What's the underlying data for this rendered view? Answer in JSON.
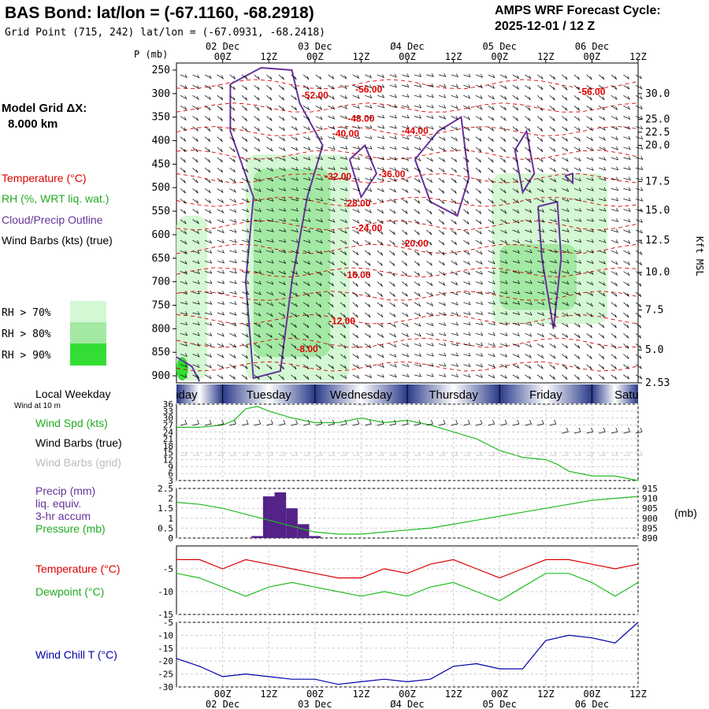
{
  "header": {
    "title": "BAS Bond:  lat/lon = (-67.1160, -68.2918)",
    "grid_point": "Grid Point (715, 242) lat/lon = (-67.0931, -68.2418)",
    "cycle_line1": "AMPS WRF Forecast Cycle:",
    "cycle_line2": "2025-12-01 / 12  Z"
  },
  "left_panel": {
    "model_grid_label": "Model Grid ΔX:",
    "model_grid_value": "8.000 km",
    "legend_temperature": "Temperature (°C)",
    "legend_rh": "RH (%, WRT liq. wat.)",
    "legend_cloud": "Cloud/Precip Outline",
    "legend_wind": "Wind Barbs (kts) (true)",
    "rh_70": "RH > 70%",
    "rh_80": "RH > 80%",
    "rh_90": "RH > 90%",
    "local_weekday": "Local Weekday",
    "wind_10m": "Wind at 10 m",
    "wind_spd": "Wind Spd (kts)",
    "wind_barbs_true": "Wind Barbs (true)",
    "wind_barbs_grid": "Wind Barbs (grid)",
    "precip_line1": "Precip (mm)",
    "precip_line2": "liq. equiv.",
    "precip_line3": "3-hr accum",
    "pressure": "Pressure (mb)",
    "temperature": "Temperature (°C)",
    "dewpoint": "Dewpoint (°C)",
    "windchill": "Wind Chill T (°C)"
  },
  "colors": {
    "temperature": "#dd0000",
    "rh_70": "#d4f7d4",
    "rh_80": "#a3e8a3",
    "rh_90": "#33dd33",
    "cloud": "#663399",
    "wind_spd": "#22bb22",
    "pressure": "#22bb22",
    "dewpoint": "#22bb22",
    "precip": "#552288",
    "windchill": "#0000aa",
    "barbs_grid": "#bbbbbb"
  },
  "chart_data": [
    {
      "type": "line",
      "name": "cross-section",
      "p_axis_label": "P (mb)",
      "height_axis_label": "Kft MSL",
      "x_date_labels": [
        "02 Dec",
        "03 Dec",
        "Ø4 Dec",
        "05 Dec",
        "06 Dec"
      ],
      "x_hour_labels": [
        "00Z",
        "12Z",
        "00Z",
        "12Z",
        "00Z",
        "12Z",
        "00Z",
        "12Z",
        "00Z",
        "12Z"
      ],
      "x_hours": [
        12,
        24,
        36,
        48,
        60,
        72,
        84,
        96,
        108,
        120
      ],
      "x_range": [
        0,
        120
      ],
      "pressure_ticks": [
        250,
        300,
        350,
        400,
        450,
        500,
        550,
        600,
        650,
        700,
        750,
        800,
        850,
        900
      ],
      "height_ticks": [
        {
          "p": 300,
          "label": "30.0"
        },
        {
          "p": 355,
          "label": "25.0"
        },
        {
          "p": 382,
          "label": "22.5"
        },
        {
          "p": 410,
          "label": "20.0"
        },
        {
          "p": 487,
          "label": "17.5"
        },
        {
          "p": 548,
          "label": "15.0"
        },
        {
          "p": 612,
          "label": "12.5"
        },
        {
          "p": 680,
          "label": "10.0"
        },
        {
          "p": 760,
          "label": "7.5"
        },
        {
          "p": 845,
          "label": "5.0"
        },
        {
          "p": 920,
          "label": "2.53"
        }
      ],
      "temperature_labels": [
        {
          "t": 36,
          "p": 310,
          "label": "-52.00"
        },
        {
          "t": 50,
          "p": 298,
          "label": "-56.00"
        },
        {
          "t": 108,
          "p": 303,
          "label": "-56.00"
        },
        {
          "t": 48,
          "p": 360,
          "label": "-48.00"
        },
        {
          "t": 62,
          "p": 386,
          "label": "-44.00"
        },
        {
          "t": 44,
          "p": 392,
          "label": "-40.00"
        },
        {
          "t": 56,
          "p": 478,
          "label": "-36.00"
        },
        {
          "t": 42,
          "p": 483,
          "label": "-32.00"
        },
        {
          "t": 47,
          "p": 540,
          "label": "-28.00"
        },
        {
          "t": 50,
          "p": 593,
          "label": "-24.00"
        },
        {
          "t": 62,
          "p": 625,
          "label": "-20.00"
        },
        {
          "t": 47,
          "p": 692,
          "label": "-16.00"
        },
        {
          "t": 43,
          "p": 790,
          "label": "-12.00"
        },
        {
          "t": 34,
          "p": 850,
          "label": "-8.00"
        }
      ],
      "rh_regions": [
        {
          "level": "70",
          "t_range": [
            0,
            8
          ],
          "p_range": [
            560,
            910
          ]
        },
        {
          "level": "70",
          "t_range": [
            18,
            45
          ],
          "p_range": [
            430,
            910
          ]
        },
        {
          "level": "70",
          "t_range": [
            82,
            112
          ],
          "p_range": [
            470,
            790
          ]
        },
        {
          "level": "80",
          "t_range": [
            20,
            40
          ],
          "p_range": [
            460,
            860
          ]
        },
        {
          "level": "80",
          "t_range": [
            84,
            104
          ],
          "p_range": [
            620,
            760
          ]
        },
        {
          "level": "90",
          "t_range": [
            0,
            3
          ],
          "p_range": [
            860,
            910
          ]
        }
      ]
    },
    {
      "type": "line",
      "name": "wind",
      "yticks": [
        3,
        6,
        9,
        12,
        15,
        18,
        21,
        24,
        27,
        30,
        33,
        36
      ],
      "ylim": [
        3,
        36
      ],
      "hours": [
        0,
        6,
        12,
        15,
        18,
        21,
        24,
        30,
        36,
        42,
        48,
        54,
        60,
        66,
        72,
        78,
        84,
        90,
        96,
        99,
        102,
        108,
        114,
        120
      ],
      "series": [
        {
          "values": [
            26,
            26,
            27,
            29,
            34,
            35,
            33,
            30,
            28,
            28,
            30,
            28,
            29,
            27,
            24,
            21,
            16,
            13,
            12,
            10,
            7,
            5,
            5,
            3
          ]
        }
      ]
    },
    {
      "type": "bar",
      "name": "precip-pressure",
      "precip_yticks": [
        0.0,
        0.5,
        1.0,
        1.5,
        2.0,
        2.5
      ],
      "precip_ylim": [
        0,
        2.5
      ],
      "pressure_yticks": [
        890,
        895,
        900,
        905,
        910,
        915
      ],
      "pressure_ylim": [
        890,
        915
      ],
      "precip": [
        {
          "hour": 21,
          "value": 0.1
        },
        {
          "hour": 24,
          "value": 2.1
        },
        {
          "hour": 27,
          "value": 2.3
        },
        {
          "hour": 30,
          "value": 1.5
        },
        {
          "hour": 33,
          "value": 0.7
        },
        {
          "hour": 36,
          "value": 0.1
        }
      ],
      "pressure_hours": [
        0,
        6,
        12,
        18,
        24,
        30,
        36,
        42,
        48,
        54,
        60,
        66,
        72,
        78,
        84,
        90,
        96,
        102,
        108,
        114,
        120
      ],
      "pressure": [
        908,
        907,
        905,
        902,
        899,
        896,
        893,
        892,
        892,
        893,
        894,
        895,
        897,
        899,
        901,
        903,
        905,
        907,
        909,
        910,
        911
      ]
    },
    {
      "type": "line",
      "name": "temp-dewpoint",
      "yticks": [
        -5,
        -10,
        -15
      ],
      "ylim": [
        -15,
        0
      ],
      "hours": [
        0,
        6,
        12,
        18,
        24,
        30,
        36,
        42,
        48,
        54,
        60,
        66,
        72,
        78,
        84,
        90,
        96,
        102,
        108,
        114,
        120
      ],
      "series": [
        {
          "name": "Temperature (°C)",
          "values": [
            -3,
            -3,
            -5,
            -3,
            -4,
            -5,
            -6,
            -7,
            -7,
            -5,
            -6,
            -4,
            -3,
            -5,
            -7,
            -5,
            -3,
            -3,
            -4,
            -5,
            -4
          ]
        },
        {
          "name": "Dewpoint (°C)",
          "values": [
            -6,
            -7,
            -9,
            -11,
            -9,
            -8,
            -9,
            -10,
            -11,
            -10,
            -11,
            -9,
            -8,
            -10,
            -12,
            -9,
            -6,
            -6,
            -8,
            -11,
            -8
          ]
        }
      ]
    },
    {
      "type": "line",
      "name": "windchill",
      "yticks": [
        -5,
        -10,
        -15,
        -20,
        -25,
        -30
      ],
      "ylim": [
        -30,
        -5
      ],
      "hours": [
        0,
        6,
        12,
        18,
        24,
        30,
        36,
        42,
        48,
        54,
        60,
        66,
        72,
        78,
        84,
        90,
        96,
        102,
        108,
        114,
        120
      ],
      "series": [
        {
          "name": "Wind Chill T (°C)",
          "values": [
            -19,
            -22,
            -26,
            -25,
            -26,
            -27,
            -27,
            -29,
            -28,
            -27,
            -28,
            -27,
            -22,
            -21,
            -23,
            -23,
            -12,
            -10,
            -11,
            -13,
            -5
          ]
        }
      ]
    }
  ],
  "weekdays": [
    "Monday",
    "Tuesday",
    "Wednesday",
    "Thursday",
    "Friday",
    "Saturday"
  ],
  "bottom_axis": {
    "hour_labels": [
      "00Z",
      "12Z",
      "00Z",
      "12Z",
      "00Z",
      "12Z",
      "00Z",
      "12Z",
      "00Z",
      "12Z"
    ],
    "date_labels": [
      "02 Dec",
      "03 Dec",
      "Ø4 Dec",
      "05 Dec",
      "06 Dec"
    ]
  },
  "right_units": "(mb)"
}
